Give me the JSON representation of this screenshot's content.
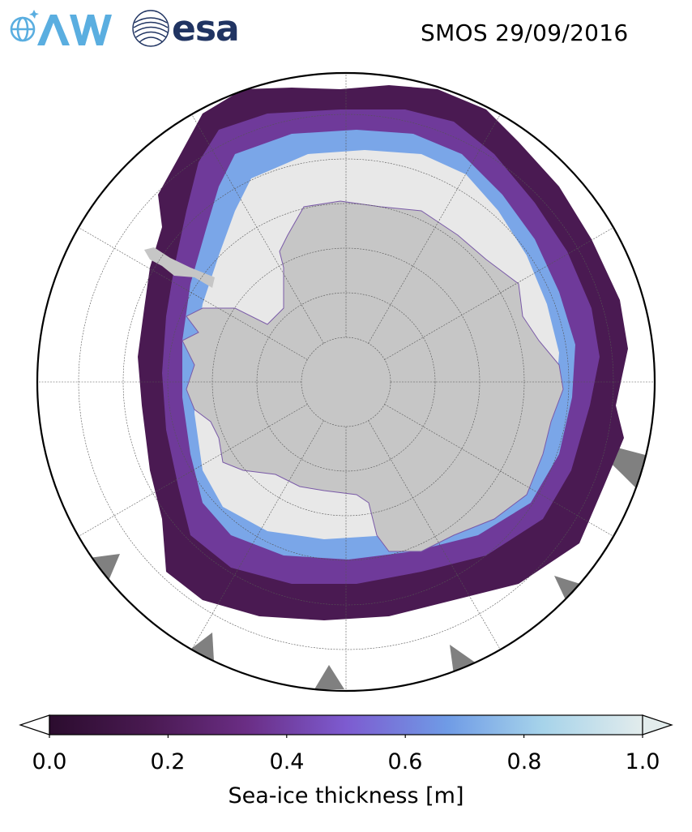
{
  "header": {
    "logo_left": {
      "icon": "awi-logo",
      "color": "#5aaee0"
    },
    "logo_right": {
      "icon": "esa-logo",
      "text": "esa",
      "color": "#203462"
    },
    "title": "SMOS 29/09/2016"
  },
  "map": {
    "projection": "south-polar-stereographic",
    "center": "South Pole",
    "graticule": true,
    "land_color": "#c6c6c6",
    "ocean_color": "#ffffff",
    "no_data_color": "#808080",
    "thick_ice_color": "#e8e8e8"
  },
  "colorbar": {
    "label": "Sea-ice thickness [m]",
    "ticks": [
      "0.0",
      "0.2",
      "0.4",
      "0.6",
      "0.8",
      "1.0"
    ],
    "range": [
      0.0,
      1.0
    ],
    "extend": "both",
    "colors": [
      "#2b0c2e",
      "#4a1a52",
      "#6a2d84",
      "#7d5bd0",
      "#6f9be6",
      "#a6d3ea",
      "#e2ecec"
    ]
  }
}
